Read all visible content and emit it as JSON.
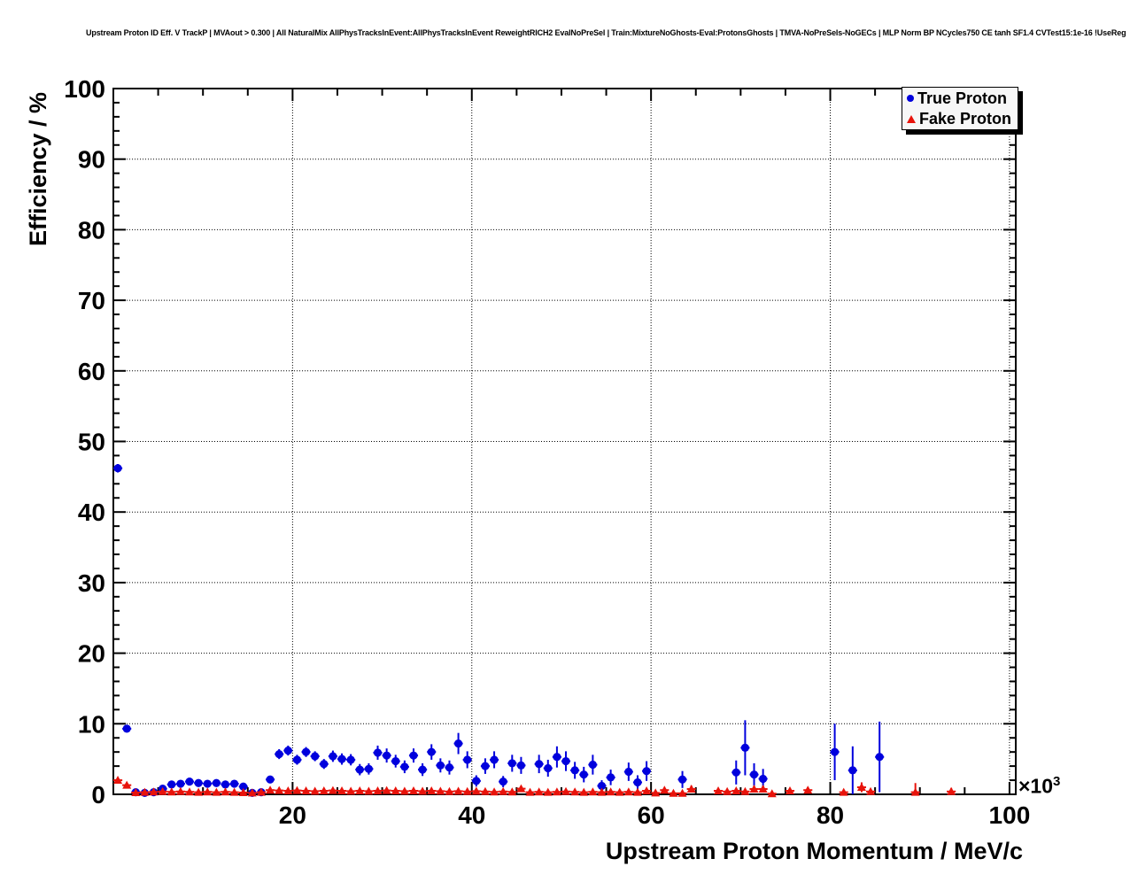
{
  "header": {
    "title": "Upstream Proton ID Eff. V TrackP | MVAout > 0.300 | All NaturalMix AllPhysTracksInEvent:AllPhysTracksInEvent ReweightRICH2 EvalNoPreSel | Train:MixtureNoGhosts-Eval:ProtonsGhosts | TMVA-NoPreSels-NoGECs | MLP Norm BP NCycles750 CE tanh SF1.4 CVTest15:1e-16 !UseReg"
  },
  "chart_data": {
    "type": "scatter",
    "title": "Upstream Proton ID Eff. V TrackP",
    "xlabel": "Upstream Proton Momentum / MeV/c",
    "ylabel": "Efficiency / %",
    "x_multiplier": {
      "text": "×10",
      "exp": "3"
    },
    "xlim": [
      0,
      100.7
    ],
    "ylim": [
      0,
      100
    ],
    "x_units": "10^3 MeV/c",
    "y_units": "percent",
    "x_major_ticks": [
      20,
      40,
      60,
      80,
      100
    ],
    "x_minor_step": 5,
    "y_major_ticks": [
      0,
      10,
      20,
      30,
      40,
      50,
      60,
      70,
      80,
      90,
      100
    ],
    "y_minor_step": 2,
    "grid": true,
    "grid_style": "dotted",
    "frame_color": "#000000",
    "background_color": "#ffffff",
    "legend": {
      "position": "top-right",
      "entries": [
        {
          "label": "True Proton",
          "marker": "circle",
          "color": "#0000dd"
        },
        {
          "label": "Fake Proton",
          "marker": "triangle",
          "color": "#e8130b"
        }
      ]
    },
    "series": [
      {
        "name": "True Proton",
        "marker": "circle",
        "color": "#0000dd",
        "point_format": [
          "x_10e3MeV",
          "efficiency_pct",
          "error_pct"
        ],
        "points": [
          [
            0.5,
            46.2,
            0.6
          ],
          [
            1.5,
            9.3,
            0.5
          ],
          [
            2.5,
            0.3,
            0.3
          ],
          [
            3.5,
            0.2,
            0.2
          ],
          [
            4.5,
            0.3,
            0.3
          ],
          [
            5.5,
            0.8,
            0.4
          ],
          [
            6.5,
            1.4,
            0.4
          ],
          [
            7.5,
            1.5,
            0.4
          ],
          [
            8.5,
            1.8,
            0.4
          ],
          [
            9.5,
            1.6,
            0.4
          ],
          [
            10.5,
            1.5,
            0.4
          ],
          [
            11.5,
            1.6,
            0.4
          ],
          [
            12.5,
            1.4,
            0.4
          ],
          [
            13.5,
            1.5,
            0.4
          ],
          [
            14.5,
            1.1,
            0.4
          ],
          [
            15.5,
            0.2,
            0.2
          ],
          [
            16.5,
            0.3,
            0.3
          ],
          [
            17.5,
            2.1,
            0.5
          ],
          [
            18.5,
            5.7,
            0.7
          ],
          [
            19.5,
            6.2,
            0.7
          ],
          [
            20.5,
            4.9,
            0.7
          ],
          [
            21.5,
            6.0,
            0.7
          ],
          [
            22.5,
            5.4,
            0.7
          ],
          [
            23.5,
            4.3,
            0.7
          ],
          [
            24.5,
            5.4,
            0.8
          ],
          [
            25.5,
            5.0,
            0.8
          ],
          [
            26.5,
            4.9,
            0.8
          ],
          [
            27.5,
            3.5,
            0.8
          ],
          [
            28.5,
            3.6,
            0.8
          ],
          [
            29.5,
            5.9,
            1.0
          ],
          [
            30.5,
            5.5,
            1.0
          ],
          [
            31.5,
            4.7,
            0.9
          ],
          [
            32.5,
            3.9,
            0.9
          ],
          [
            33.5,
            5.5,
            1.0
          ],
          [
            34.5,
            3.5,
            0.9
          ],
          [
            35.5,
            6.0,
            1.1
          ],
          [
            36.5,
            4.1,
            1.0
          ],
          [
            37.5,
            3.8,
            1.0
          ],
          [
            38.5,
            7.2,
            1.5
          ],
          [
            39.5,
            4.9,
            1.2
          ],
          [
            40.5,
            1.9,
            0.8
          ],
          [
            41.5,
            4.0,
            1.1
          ],
          [
            42.5,
            4.9,
            1.2
          ],
          [
            43.5,
            1.8,
            0.8
          ],
          [
            44.5,
            4.4,
            1.2
          ],
          [
            45.5,
            4.1,
            1.2
          ],
          [
            47.5,
            4.3,
            1.3
          ],
          [
            48.5,
            3.7,
            1.2
          ],
          [
            49.5,
            5.3,
            1.5
          ],
          [
            50.5,
            4.7,
            1.4
          ],
          [
            51.5,
            3.4,
            1.2
          ],
          [
            52.5,
            2.8,
            1.1
          ],
          [
            53.5,
            4.2,
            1.4
          ],
          [
            54.5,
            1.2,
            0.8
          ],
          [
            55.5,
            2.4,
            1.1
          ],
          [
            57.5,
            3.2,
            1.3
          ],
          [
            58.5,
            1.7,
            1.0
          ],
          [
            59.5,
            3.3,
            1.4
          ],
          [
            63.5,
            2.1,
            1.2
          ],
          [
            69.5,
            3.1,
            1.7
          ],
          [
            70.5,
            6.6,
            3.9
          ],
          [
            71.5,
            2.8,
            1.6
          ],
          [
            72.5,
            2.2,
            1.4
          ],
          [
            80.5,
            6.0,
            4.0
          ],
          [
            82.5,
            3.4,
            3.4
          ],
          [
            85.5,
            5.3,
            5.0
          ]
        ]
      },
      {
        "name": "Fake Proton",
        "marker": "triangle",
        "color": "#e8130b",
        "point_format": [
          "x_10e3MeV",
          "efficiency_pct",
          "error_pct"
        ],
        "points": [
          [
            0.5,
            2.0,
            0.3
          ],
          [
            1.5,
            1.3,
            0.25
          ],
          [
            2.5,
            0.25,
            0.1
          ],
          [
            3.5,
            0.3,
            0.1
          ],
          [
            4.5,
            0.35,
            0.1
          ],
          [
            5.5,
            0.4,
            0.1
          ],
          [
            6.5,
            0.35,
            0.1
          ],
          [
            7.5,
            0.4,
            0.1
          ],
          [
            8.5,
            0.35,
            0.1
          ],
          [
            9.5,
            0.3,
            0.1
          ],
          [
            10.5,
            0.35,
            0.1
          ],
          [
            11.5,
            0.3,
            0.1
          ],
          [
            12.5,
            0.35,
            0.1
          ],
          [
            13.5,
            0.3,
            0.1
          ],
          [
            14.5,
            0.25,
            0.1
          ],
          [
            15.5,
            0.2,
            0.1
          ],
          [
            16.5,
            0.3,
            0.1
          ],
          [
            17.5,
            0.6,
            0.15
          ],
          [
            18.5,
            0.55,
            0.15
          ],
          [
            19.5,
            0.5,
            0.15
          ],
          [
            20.5,
            0.55,
            0.15
          ],
          [
            21.5,
            0.5,
            0.15
          ],
          [
            22.5,
            0.45,
            0.15
          ],
          [
            23.5,
            0.5,
            0.15
          ],
          [
            24.5,
            0.55,
            0.15
          ],
          [
            25.5,
            0.5,
            0.15
          ],
          [
            26.5,
            0.45,
            0.15
          ],
          [
            27.5,
            0.5,
            0.15
          ],
          [
            28.5,
            0.45,
            0.15
          ],
          [
            29.5,
            0.5,
            0.15
          ],
          [
            30.5,
            0.55,
            0.15
          ],
          [
            31.5,
            0.5,
            0.15
          ],
          [
            32.5,
            0.45,
            0.15
          ],
          [
            33.5,
            0.5,
            0.15
          ],
          [
            34.5,
            0.45,
            0.15
          ],
          [
            35.5,
            0.5,
            0.15
          ],
          [
            36.5,
            0.45,
            0.15
          ],
          [
            37.5,
            0.4,
            0.15
          ],
          [
            38.5,
            0.45,
            0.15
          ],
          [
            39.5,
            0.4,
            0.15
          ],
          [
            40.5,
            0.45,
            0.2
          ],
          [
            41.5,
            0.4,
            0.2
          ],
          [
            42.5,
            0.35,
            0.2
          ],
          [
            43.5,
            0.4,
            0.2
          ],
          [
            44.5,
            0.35,
            0.2
          ],
          [
            45.5,
            0.8,
            0.35
          ],
          [
            46.5,
            0.3,
            0.2
          ],
          [
            47.5,
            0.35,
            0.2
          ],
          [
            48.5,
            0.3,
            0.2
          ],
          [
            49.5,
            0.35,
            0.2
          ],
          [
            50.5,
            0.4,
            0.2
          ],
          [
            51.5,
            0.35,
            0.2
          ],
          [
            52.5,
            0.3,
            0.2
          ],
          [
            53.5,
            0.35,
            0.2
          ],
          [
            54.5,
            0.3,
            0.2
          ],
          [
            55.5,
            0.35,
            0.2
          ],
          [
            56.5,
            0.3,
            0.2
          ],
          [
            57.5,
            0.35,
            0.2
          ],
          [
            58.5,
            0.3,
            0.2
          ],
          [
            59.5,
            0.5,
            0.25
          ],
          [
            60.5,
            0.2,
            0.15
          ],
          [
            61.5,
            0.6,
            0.3
          ],
          [
            62.5,
            0.15,
            0.1
          ],
          [
            63.5,
            0.15,
            0.1
          ],
          [
            64.5,
            0.75,
            0.5
          ],
          [
            67.5,
            0.5,
            0.3
          ],
          [
            68.5,
            0.4,
            0.3
          ],
          [
            69.5,
            0.5,
            0.3
          ],
          [
            70.5,
            0.4,
            0.3
          ],
          [
            71.5,
            0.75,
            0.4
          ],
          [
            72.5,
            0.75,
            0.4
          ],
          [
            73.5,
            0.1,
            0.1
          ],
          [
            75.5,
            0.5,
            0.3
          ],
          [
            77.5,
            0.6,
            0.4
          ],
          [
            81.5,
            0.3,
            0.3
          ],
          [
            83.5,
            1.0,
            0.7
          ],
          [
            84.5,
            0.4,
            0.4
          ],
          [
            89.5,
            0.3,
            1.3
          ],
          [
            93.5,
            0.4,
            0.5
          ]
        ]
      }
    ]
  }
}
